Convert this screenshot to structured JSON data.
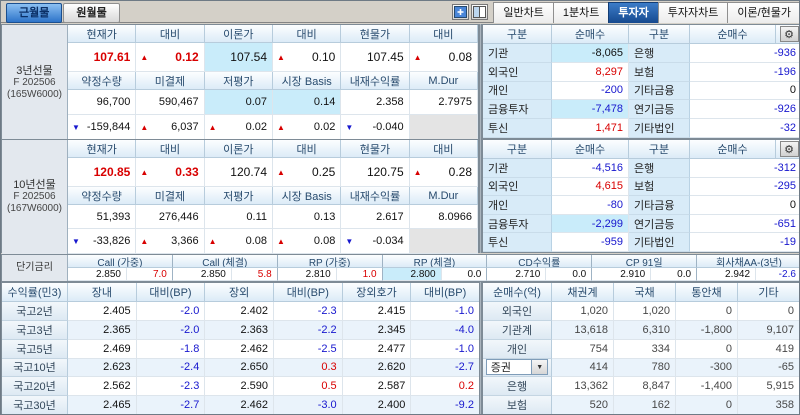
{
  "symbols": {
    "up": "▲",
    "down": "▼",
    "gear": "⚙",
    "combo_arrow": "▼"
  },
  "colors": {
    "red": "#D80000",
    "blue": "#1717CE",
    "highlight": "#C9ECFA",
    "accent": "#1D5FAF"
  },
  "top_tabs_left": [
    {
      "label": "근월물",
      "selected": true
    },
    {
      "label": "원월물",
      "selected": false
    }
  ],
  "top_tabs_right": [
    {
      "label": "일반차트",
      "selected": false
    },
    {
      "label": "1분차트",
      "selected": false
    },
    {
      "label": "투자자",
      "selected": true
    },
    {
      "label": "투자자차트",
      "selected": false
    },
    {
      "label": "이론/현물가",
      "selected": false
    }
  ],
  "futures_blocks": [
    {
      "title_lines": [
        "3년선물",
        "F 202506",
        "(165W6000)"
      ],
      "price_headers": [
        "현재가",
        "대비",
        "이론가",
        "대비",
        "현물가",
        "대비"
      ],
      "price_cells": [
        {
          "text": "107.61",
          "color": "red",
          "bold": true
        },
        {
          "arrow": "up",
          "text": "0.12",
          "color": "red",
          "bold": true
        },
        {
          "text": "107.54",
          "hl": true
        },
        {
          "arrow": "up",
          "text": "0.10"
        },
        {
          "text": "107.45"
        },
        {
          "arrow": "up",
          "text": "0.08"
        }
      ],
      "stat_headers": [
        "약정수량",
        "미결제",
        "저평가",
        "시장 Basis",
        "내재수익률",
        "M.Dur"
      ],
      "stat_cells": [
        {
          "text": "96,700"
        },
        {
          "text": "590,467"
        },
        {
          "text": "0.07",
          "hl": true
        },
        {
          "text": "0.14",
          "hl": true
        },
        {
          "text": "2.358"
        },
        {
          "text": "2.7975"
        }
      ],
      "change_cells": [
        {
          "arrow": "down",
          "text": "-159,844"
        },
        {
          "arrow": "up",
          "text": "6,037"
        },
        {
          "arrow": "up",
          "text": "0.02"
        },
        {
          "arrow": "up",
          "text": "0.02"
        },
        {
          "arrow": "down",
          "text": "-0.040"
        },
        {
          "text": "",
          "empty": true
        }
      ]
    },
    {
      "title_lines": [
        "10년선물",
        "F 202506",
        "(167W6000)"
      ],
      "price_headers": [
        "현재가",
        "대비",
        "이론가",
        "대비",
        "현물가",
        "대비"
      ],
      "price_cells": [
        {
          "text": "120.85",
          "color": "red",
          "bold": true
        },
        {
          "arrow": "up",
          "text": "0.33",
          "color": "red",
          "bold": true
        },
        {
          "text": "120.74"
        },
        {
          "arrow": "up",
          "text": "0.25"
        },
        {
          "text": "120.75"
        },
        {
          "arrow": "up",
          "text": "0.28"
        }
      ],
      "stat_headers": [
        "약정수량",
        "미결제",
        "저평가",
        "시장 Basis",
        "내재수익률",
        "M.Dur"
      ],
      "stat_cells": [
        {
          "text": "51,393"
        },
        {
          "text": "276,446"
        },
        {
          "text": "0.11"
        },
        {
          "text": "0.13"
        },
        {
          "text": "2.617"
        },
        {
          "text": "8.0966"
        }
      ],
      "change_cells": [
        {
          "arrow": "down",
          "text": "-33,826"
        },
        {
          "arrow": "up",
          "text": "3,366"
        },
        {
          "arrow": "up",
          "text": "0.08"
        },
        {
          "arrow": "up",
          "text": "0.08"
        },
        {
          "arrow": "down",
          "text": "-0.034"
        },
        {
          "text": "",
          "empty": true
        }
      ]
    }
  ],
  "investor_blocks": [
    {
      "headers": [
        "구분",
        "순매수",
        "구분",
        "순매수"
      ],
      "rows": [
        {
          "l1": "기관",
          "v1": "-8,065",
          "c1": "black",
          "hl1": true,
          "l2": "은행",
          "v2": "-936",
          "c2": "blue"
        },
        {
          "l1": "외국인",
          "v1": "8,297",
          "c1": "red",
          "l2": "보험",
          "v2": "-196",
          "c2": "blue"
        },
        {
          "l1": "개인",
          "v1": "-200",
          "c1": "blue",
          "l2": "기타금융",
          "v2": "0",
          "c2": "black"
        },
        {
          "l1": "금융투자",
          "v1": "-7,478",
          "c1": "blue",
          "hl1": true,
          "l2": "연기금등",
          "v2": "-926",
          "c2": "blue"
        },
        {
          "l1": "투신",
          "v1": "1,471",
          "c1": "red",
          "l2": "기타법인",
          "v2": "-32",
          "c2": "blue"
        }
      ]
    },
    {
      "headers": [
        "구분",
        "순매수",
        "구분",
        "순매수"
      ],
      "rows": [
        {
          "l1": "기관",
          "v1": "-4,516",
          "c1": "blue",
          "l2": "은행",
          "v2": "-312",
          "c2": "blue"
        },
        {
          "l1": "외국인",
          "v1": "4,615",
          "c1": "red",
          "l2": "보험",
          "v2": "-295",
          "c2": "blue"
        },
        {
          "l1": "개인",
          "v1": "-80",
          "c1": "blue",
          "l2": "기타금융",
          "v2": "0",
          "c2": "black"
        },
        {
          "l1": "금융투자",
          "v1": "-2,299",
          "c1": "blue",
          "hl1": true,
          "l2": "연기금등",
          "v2": "-651",
          "c2": "blue"
        },
        {
          "l1": "투신",
          "v1": "-959",
          "c1": "blue",
          "l2": "기타법인",
          "v2": "-19",
          "c2": "blue"
        }
      ]
    }
  ],
  "short_rates": {
    "label": "단기금리",
    "groups": [
      {
        "header": "Call (가중)",
        "value": "2.850",
        "chg": "7.0",
        "chg_color": "red"
      },
      {
        "header": "Call (체결)",
        "value": "2.850",
        "chg": "5.8",
        "chg_color": "red"
      },
      {
        "header": "RP (가중)",
        "value": "2.810",
        "chg": "1.0",
        "chg_color": "red"
      },
      {
        "header": "RP (체결)",
        "value": "2.800",
        "hl": true,
        "chg": "0.0",
        "chg_color": "black"
      },
      {
        "header": "CD수익률",
        "value": "2.710",
        "chg": "0.0",
        "chg_color": "black"
      },
      {
        "header": "CP 91일",
        "value": "2.910",
        "chg": "0.0",
        "chg_color": "black"
      },
      {
        "header": "회사채AA-(3년)",
        "value": "2.942",
        "chg": "-2.6",
        "chg_color": "blue"
      }
    ]
  },
  "yield_table": {
    "corner": "수익률(민3)",
    "headers": [
      "장내",
      "대비(BP)",
      "장외",
      "대비(BP)",
      "장외호가",
      "대비(BP)"
    ],
    "rows": [
      {
        "label": "국고2년",
        "cells": [
          {
            "text": "2.405"
          },
          {
            "text": "-2.0",
            "color": "blue"
          },
          {
            "text": "2.402"
          },
          {
            "text": "-2.3",
            "color": "blue"
          },
          {
            "text": "2.415"
          },
          {
            "text": "-1.0",
            "color": "blue"
          }
        ]
      },
      {
        "label": "국고3년",
        "cells": [
          {
            "text": "2.365"
          },
          {
            "text": "-2.0",
            "color": "blue"
          },
          {
            "text": "2.363"
          },
          {
            "text": "-2.2",
            "color": "blue"
          },
          {
            "text": "2.345"
          },
          {
            "text": "-4.0",
            "color": "blue"
          }
        ]
      },
      {
        "label": "국고5년",
        "cells": [
          {
            "text": "2.469"
          },
          {
            "text": "-1.8",
            "color": "blue"
          },
          {
            "text": "2.462"
          },
          {
            "text": "-2.5",
            "color": "blue"
          },
          {
            "text": "2.477"
          },
          {
            "text": "-1.0",
            "color": "blue"
          }
        ]
      },
      {
        "label": "국고10년",
        "cells": [
          {
            "text": "2.623"
          },
          {
            "text": "-2.4",
            "color": "blue"
          },
          {
            "text": "2.650"
          },
          {
            "text": "0.3",
            "color": "red"
          },
          {
            "text": "2.620"
          },
          {
            "text": "-2.7",
            "color": "blue"
          }
        ]
      },
      {
        "label": "국고20년",
        "cells": [
          {
            "text": "2.562"
          },
          {
            "text": "-2.3",
            "color": "blue"
          },
          {
            "text": "2.590"
          },
          {
            "text": "0.5",
            "color": "red"
          },
          {
            "text": "2.587"
          },
          {
            "text": "0.2",
            "color": "red"
          }
        ]
      },
      {
        "label": "국고30년",
        "cells": [
          {
            "text": "2.465"
          },
          {
            "text": "-2.7",
            "color": "blue"
          },
          {
            "text": "2.462"
          },
          {
            "text": "-3.0",
            "color": "blue"
          },
          {
            "text": "2.400"
          },
          {
            "text": "-9.2",
            "color": "blue"
          }
        ]
      }
    ]
  },
  "netbuy_table": {
    "corner": "순매수(억)",
    "headers": [
      "채권계",
      "국채",
      "통안채",
      "기타"
    ],
    "rows": [
      {
        "label": "외국인",
        "cells": [
          "1,020",
          "1,020",
          "0",
          "0"
        ]
      },
      {
        "label": "기관계",
        "cells": [
          "13,618",
          "6,310",
          "-1,800",
          "9,107"
        ]
      },
      {
        "label": "개인",
        "cells": [
          "754",
          "334",
          "0",
          "419"
        ]
      },
      {
        "label": "증권",
        "dropdown": true,
        "cells": [
          "414",
          "780",
          "-300",
          "-65"
        ]
      },
      {
        "label": "은행",
        "cells": [
          "13,362",
          "8,847",
          "-1,400",
          "5,915"
        ]
      },
      {
        "label": "보험",
        "cells": [
          "520",
          "162",
          "0",
          "358"
        ]
      }
    ]
  }
}
